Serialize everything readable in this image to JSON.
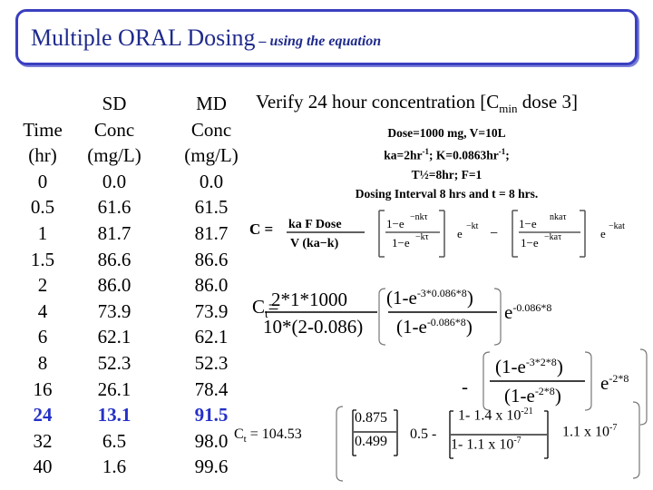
{
  "title": {
    "main": "Multiple ORAL Dosing",
    "sub": " – using the equation"
  },
  "table": {
    "time_header": [
      "",
      "Time",
      "(hr)"
    ],
    "sd_header": [
      "SD",
      "Conc",
      "(mg/L)"
    ],
    "md_header": [
      "MD",
      "Conc",
      "(mg/L)"
    ],
    "time": [
      "0",
      "0.5",
      "1",
      "1.5",
      "2",
      "4",
      "6",
      "8",
      "16",
      "24",
      "32",
      "40"
    ],
    "sd": [
      "0.0",
      "61.6",
      "81.7",
      "86.6",
      "86.0",
      "73.9",
      "62.1",
      "52.3",
      "26.1",
      "13.1",
      "6.5",
      "1.6"
    ],
    "md": [
      "0.0",
      "61.5",
      "81.7",
      "86.6",
      "86.0",
      "73.9",
      "62.1",
      "52.3",
      "78.4",
      "91.5",
      "98.0",
      "99.6"
    ],
    "highlight_row": 9,
    "highlight_color": "#2430c8"
  },
  "verify": {
    "text": "Verify 24 hour concentration [C",
    "sub": "min",
    "tail": " dose 3]"
  },
  "params": {
    "line1": "Dose=1000 mg, V=10L",
    "line2_a": "ka=2hr",
    "line2_sup1": "-1",
    "line2_b": "; K=0.0863hr",
    "line2_sup2": "-1",
    "line2_c": ";",
    "line3": "T½=8hr; F=1",
    "line4": "Dosing Interval 8 hrs and t = 8 hrs."
  },
  "equation": {
    "ct_label": "C",
    "ct_sub": "t",
    "equals": "=",
    "numerator": "2*1*1000",
    "denominator": "10*(2-0.086)",
    "term1_num": "(1-e",
    "term1_num_sup": "-3*0.086*8",
    "term1_num_close": ")",
    "term1_den": "(1-e",
    "term1_den_sup": "-0.086*8",
    "term1_den_close": ")",
    "exp1": "e",
    "exp1_sup": "-0.086*8",
    "minus": "-",
    "term2_num": "(1-e",
    "term2_num_sup": "-3*2*8",
    "term2_num_close": ")",
    "term2_den": "(1-e",
    "term2_den_sup": "-2*8",
    "term2_den_close": ")",
    "exp2": "e",
    "exp2_sup": "-2*8"
  },
  "result": {
    "ct": "C",
    "ct_sub": "t",
    "ct_value": " = 104.53",
    "frac1_num": "0.875",
    "frac1_den": "0.499",
    "mid": "0.5 -",
    "frac2_num": "1- 1.4 x 10",
    "frac2_num_sup": "-21",
    "frac2_den": "1- 1.1 x 10",
    "frac2_den_sup": "-7",
    "tail": "1.1 x 10",
    "tail_sup": "-7"
  }
}
